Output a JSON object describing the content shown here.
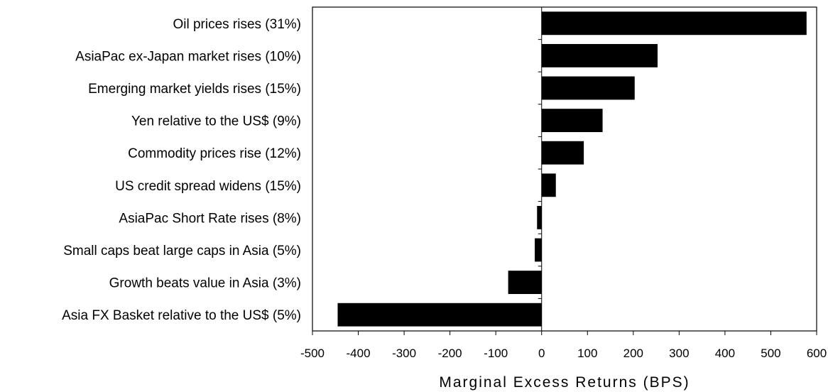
{
  "chart_data": {
    "type": "bar",
    "orientation": "horizontal",
    "categories": [
      "Oil prices rises (31%)",
      "AsiaPac ex-Japan market rises (10%)",
      "Emerging market yields rises (15%)",
      "Yen relative to the US$ (9%)",
      "Commodity prices rise (12%)",
      "US credit spread widens (15%)",
      "AsiaPac Short Rate rises (8%)",
      "Small caps beat large caps in Asia (5%)",
      "Growth beats value in Asia (3%)",
      "Asia FX Basket relative to the US$ (5%)"
    ],
    "values": [
      578,
      253,
      203,
      133,
      92,
      31,
      -10,
      -15,
      -73,
      -445
    ],
    "title": "",
    "xlabel": "Marginal Excess Returns (BPS)",
    "ylabel": "",
    "xlim": [
      -500,
      600
    ],
    "xticks": [
      "-500",
      "-400",
      "-300",
      "-200",
      "-100",
      "0",
      "100",
      "200",
      "300",
      "400",
      "500",
      "600"
    ],
    "grid": false,
    "legend": "none",
    "bar_color": "#000000"
  }
}
